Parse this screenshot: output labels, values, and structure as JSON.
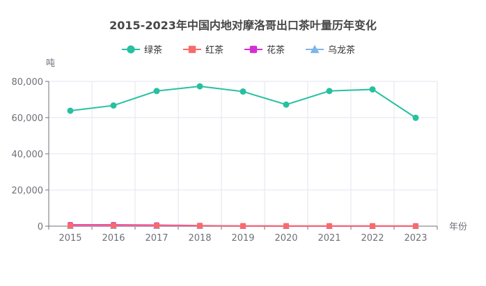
{
  "chart_data": {
    "type": "line",
    "title": "2015-2023年中国内地对摩洛哥出口茶叶量历年变化",
    "xlabel": "年份",
    "ylabel": "吨",
    "categories": [
      "2015",
      "2016",
      "2017",
      "2018",
      "2019",
      "2020",
      "2021",
      "2022",
      "2023"
    ],
    "ylim": [
      0,
      80000
    ],
    "yticks": [
      0,
      20000,
      40000,
      60000,
      80000
    ],
    "ytick_labels": [
      "0",
      "20,000",
      "40,000",
      "60,000",
      "80,000"
    ],
    "grid": true,
    "legend_position": "top-center",
    "series": [
      {
        "name": "绿茶",
        "color": "#27c0a0",
        "marker": "circle",
        "values": [
          63800,
          66700,
          74700,
          77300,
          74400,
          67200,
          74700,
          75600,
          59900
        ]
      },
      {
        "name": "红茶",
        "color": "#f76b6b",
        "marker": "square",
        "values": [
          300,
          300,
          300,
          200,
          100,
          100,
          100,
          100,
          100
        ]
      },
      {
        "name": "花茶",
        "color": "#d42fd4",
        "marker": "rounded-square",
        "values": [
          700,
          700,
          600,
          300,
          100,
          50,
          50,
          50,
          50
        ]
      },
      {
        "name": "乌龙茶",
        "color": "#7fb5e8",
        "marker": "triangle",
        "values": [
          20,
          20,
          20,
          20,
          20,
          20,
          20,
          20,
          20
        ]
      }
    ]
  }
}
